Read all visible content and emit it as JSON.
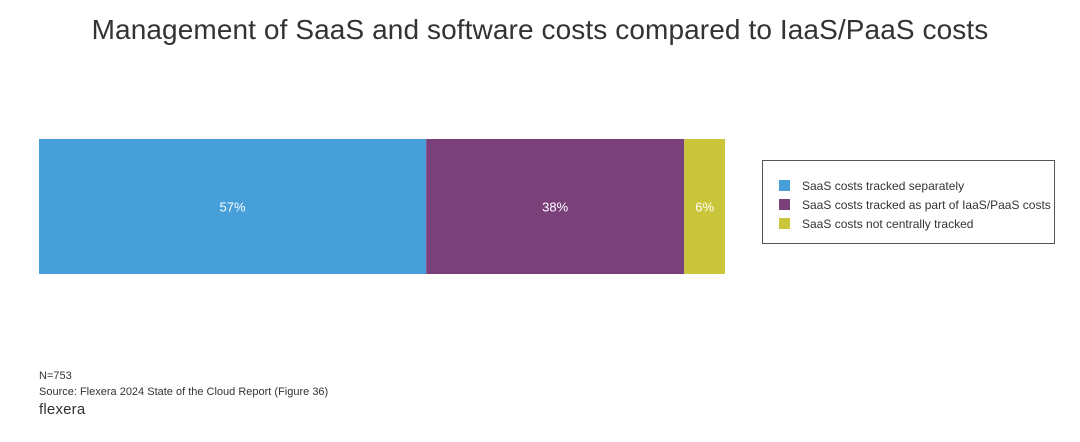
{
  "chart_data": {
    "type": "bar",
    "stacked": true,
    "orientation": "horizontal",
    "title": "Management of SaaS and software costs compared to IaaS/PaaS costs",
    "series": [
      {
        "name": "SaaS costs tracked separately",
        "value": 57,
        "label": "57%",
        "color": "#479fda"
      },
      {
        "name": "SaaS costs tracked as part of IaaS/PaaS costs",
        "value": 38,
        "label": "38%",
        "color": "#79407a"
      },
      {
        "name": "SaaS costs not centrally tracked",
        "value": 6,
        "label": "6%",
        "color": "#cac63b"
      }
    ],
    "legend_position": "right",
    "grid": false
  },
  "footer": {
    "n": "N=753",
    "source": "Source: Flexera 2024 State of the Cloud Report (Figure 36)",
    "logo": "flexera"
  }
}
